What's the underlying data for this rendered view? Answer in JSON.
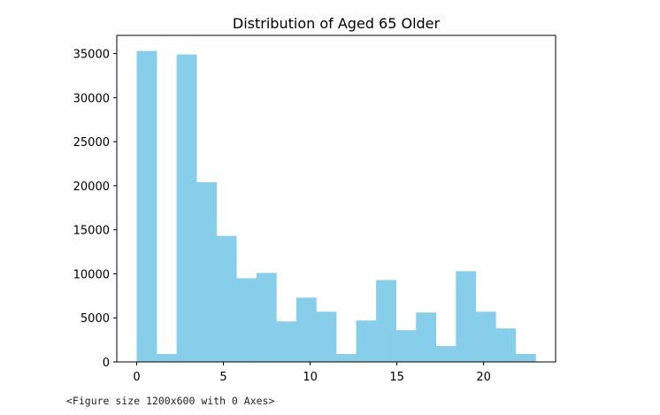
{
  "chart_data": {
    "type": "bar",
    "title": "Distribution of Aged 65 Older",
    "xlabel": "",
    "ylabel": "",
    "bin_edges": [
      0,
      1.15,
      2.3,
      3.45,
      4.6,
      5.75,
      6.9,
      8.05,
      9.2,
      10.35,
      11.5,
      12.65,
      13.8,
      14.95,
      16.1,
      17.25,
      18.4,
      19.55,
      20.7,
      21.85,
      23
    ],
    "values": [
      35300,
      900,
      34900,
      20400,
      14300,
      9500,
      10100,
      4600,
      7300,
      5700,
      900,
      4700,
      9300,
      3600,
      5600,
      1800,
      10300,
      5700,
      3800,
      900
    ],
    "color": "#87ceeb",
    "xlim": [
      -1.15,
      24.15
    ],
    "ylim": [
      0,
      37065
    ],
    "xticks": [
      0,
      5,
      10,
      15,
      20
    ],
    "yticks": [
      0,
      5000,
      10000,
      15000,
      20000,
      25000,
      30000,
      35000
    ],
    "grid": false
  },
  "output_text": "<Figure size 1200x600 with 0 Axes>"
}
